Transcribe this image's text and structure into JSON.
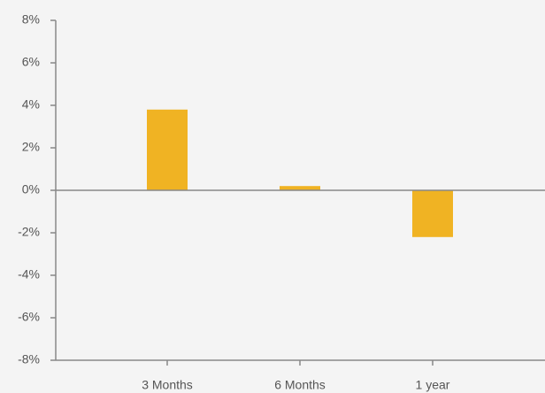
{
  "chart_data": {
    "type": "bar",
    "categories": [
      "3 Months",
      "6 Months",
      "1 year"
    ],
    "values": [
      3.8,
      0.2,
      -2.2
    ],
    "color": "#f0b323",
    "ylim": [
      -8,
      8
    ],
    "yticks": [
      {
        "value": -8,
        "label": "-8%"
      },
      {
        "value": -6,
        "label": "-6%"
      },
      {
        "value": -4,
        "label": "-4%"
      },
      {
        "value": -2,
        "label": "-2%"
      },
      {
        "value": 0,
        "label": "0%"
      },
      {
        "value": 2,
        "label": "2%"
      },
      {
        "value": 4,
        "label": "4%"
      },
      {
        "value": 6,
        "label": "6%"
      },
      {
        "value": 8,
        "label": "8%"
      }
    ],
    "grid": false
  }
}
